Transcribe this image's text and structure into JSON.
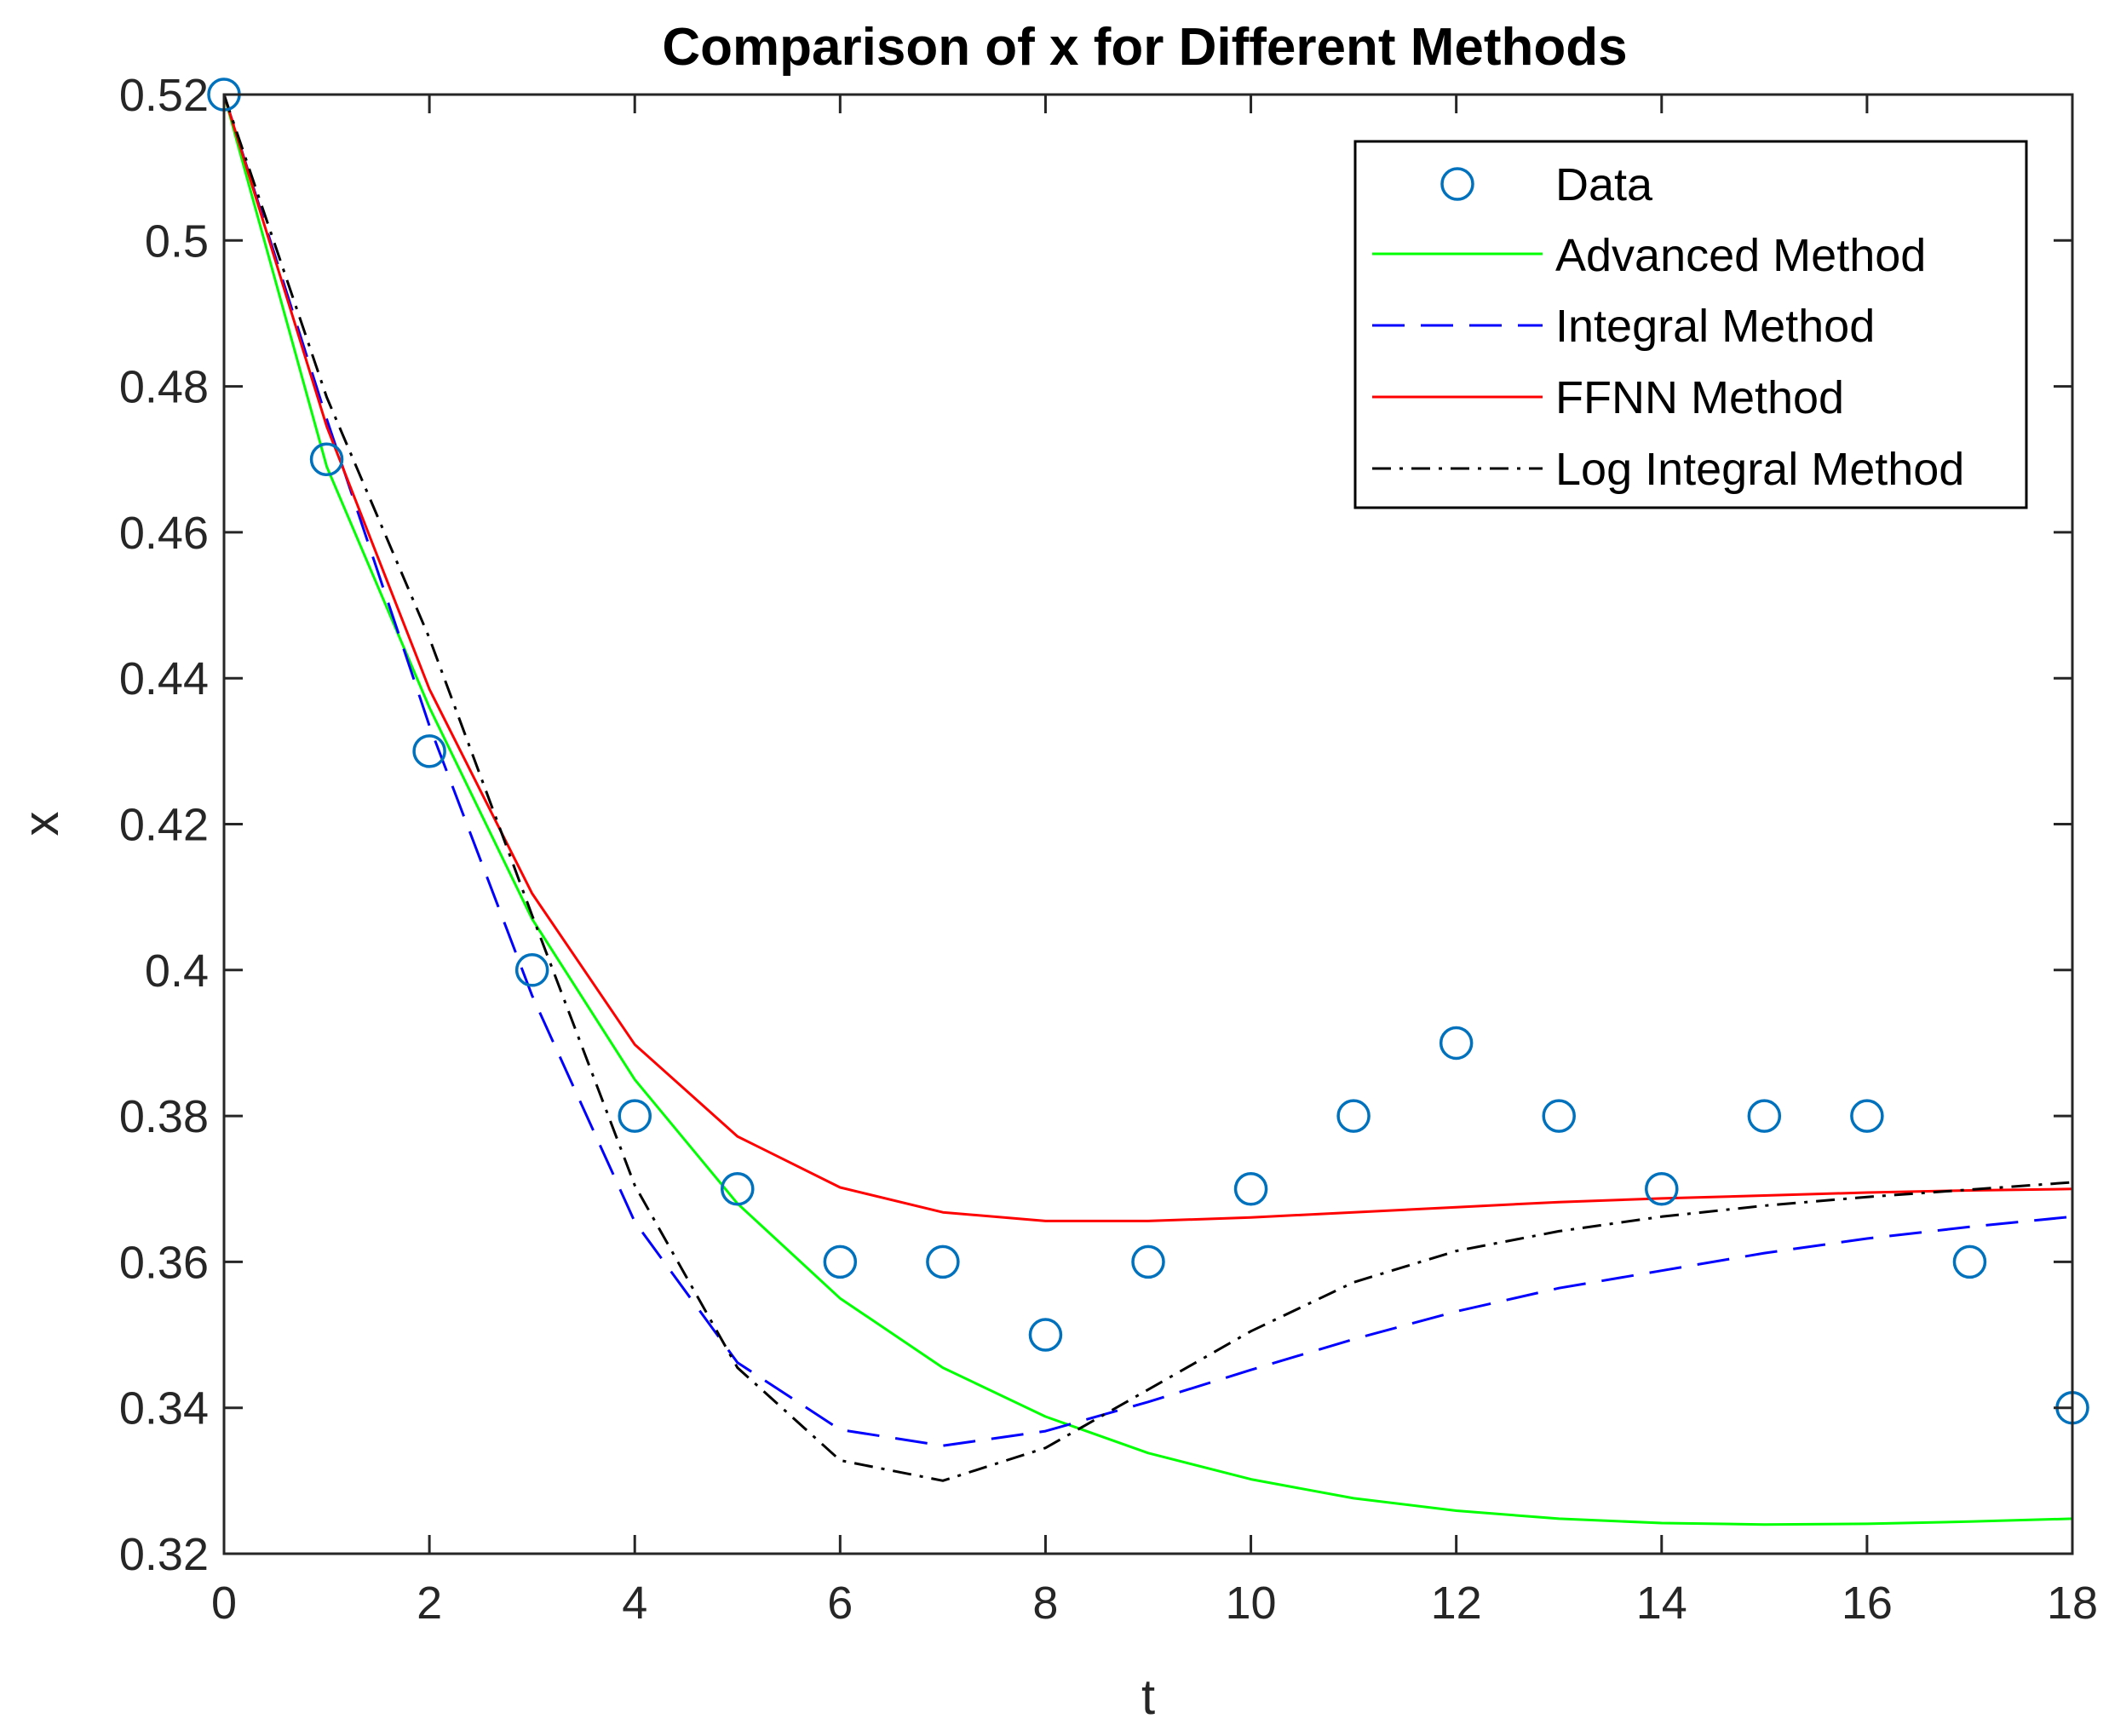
{
  "chart_data": {
    "type": "line",
    "title": "Comparison of x for Different Methods",
    "xlabel": "t",
    "ylabel": "x",
    "xlim": [
      0,
      18
    ],
    "ylim": [
      0.32,
      0.52
    ],
    "xticks": [
      0,
      2,
      4,
      6,
      8,
      10,
      12,
      14,
      16,
      18
    ],
    "xtick_labels": [
      "0",
      "2",
      "4",
      "6",
      "8",
      "10",
      "12",
      "14",
      "16",
      "18"
    ],
    "yticks": [
      0.32,
      0.34,
      0.36,
      0.38,
      0.4,
      0.42,
      0.44,
      0.46,
      0.48,
      0.5,
      0.52
    ],
    "ytick_labels": [
      "0.32",
      "0.34",
      "0.36",
      "0.38",
      "0.4",
      "0.42",
      "0.44",
      "0.46",
      "0.48",
      "0.5",
      "0.52"
    ],
    "grid": false,
    "legend_position": "top-right",
    "x": [
      0,
      1,
      2,
      3,
      4,
      5,
      6,
      7,
      8,
      9,
      10,
      11,
      12,
      13,
      14,
      15,
      16,
      17,
      18
    ],
    "series": [
      {
        "name": "Data",
        "style": "markers",
        "marker": "circle",
        "color": "#0072BD",
        "values": [
          0.52,
          0.47,
          0.43,
          0.4,
          0.38,
          0.37,
          0.36,
          0.36,
          0.35,
          0.36,
          0.37,
          0.38,
          0.39,
          0.38,
          0.37,
          0.38,
          0.38,
          0.36,
          0.34
        ]
      },
      {
        "name": "Advanced Method",
        "style": "solid",
        "color": "#00FF00",
        "values": [
          0.52,
          0.469,
          0.436,
          0.407,
          0.385,
          0.368,
          0.355,
          0.3455,
          0.3388,
          0.3338,
          0.3302,
          0.3276,
          0.3259,
          0.3248,
          0.3242,
          0.324,
          0.3241,
          0.3244,
          0.3248
        ]
      },
      {
        "name": "Integral Method",
        "style": "dashed",
        "color": "#0000FF",
        "values": [
          0.52,
          0.4755,
          0.4335,
          0.3965,
          0.3655,
          0.3462,
          0.337,
          0.3348,
          0.3368,
          0.3408,
          0.3452,
          0.3494,
          0.3532,
          0.3564,
          0.3588,
          0.3612,
          0.3632,
          0.3648,
          0.3662
        ]
      },
      {
        "name": "FFNN Method",
        "style": "solid",
        "color": "#FF0000",
        "values": [
          0.52,
          0.4745,
          0.4385,
          0.4105,
          0.3898,
          0.3772,
          0.3702,
          0.3668,
          0.3656,
          0.3656,
          0.3661,
          0.3668,
          0.3675,
          0.3682,
          0.3687,
          0.3691,
          0.3695,
          0.3698,
          0.37
        ]
      },
      {
        "name": "Log Integral Method",
        "style": "dashdot",
        "color": "#000000",
        "values": [
          0.52,
          0.4785,
          0.4455,
          0.4075,
          0.3705,
          0.3455,
          0.3328,
          0.33,
          0.3345,
          0.3425,
          0.3505,
          0.3572,
          0.3615,
          0.3642,
          0.3662,
          0.3677,
          0.3689,
          0.3699,
          0.3709
        ]
      }
    ]
  }
}
